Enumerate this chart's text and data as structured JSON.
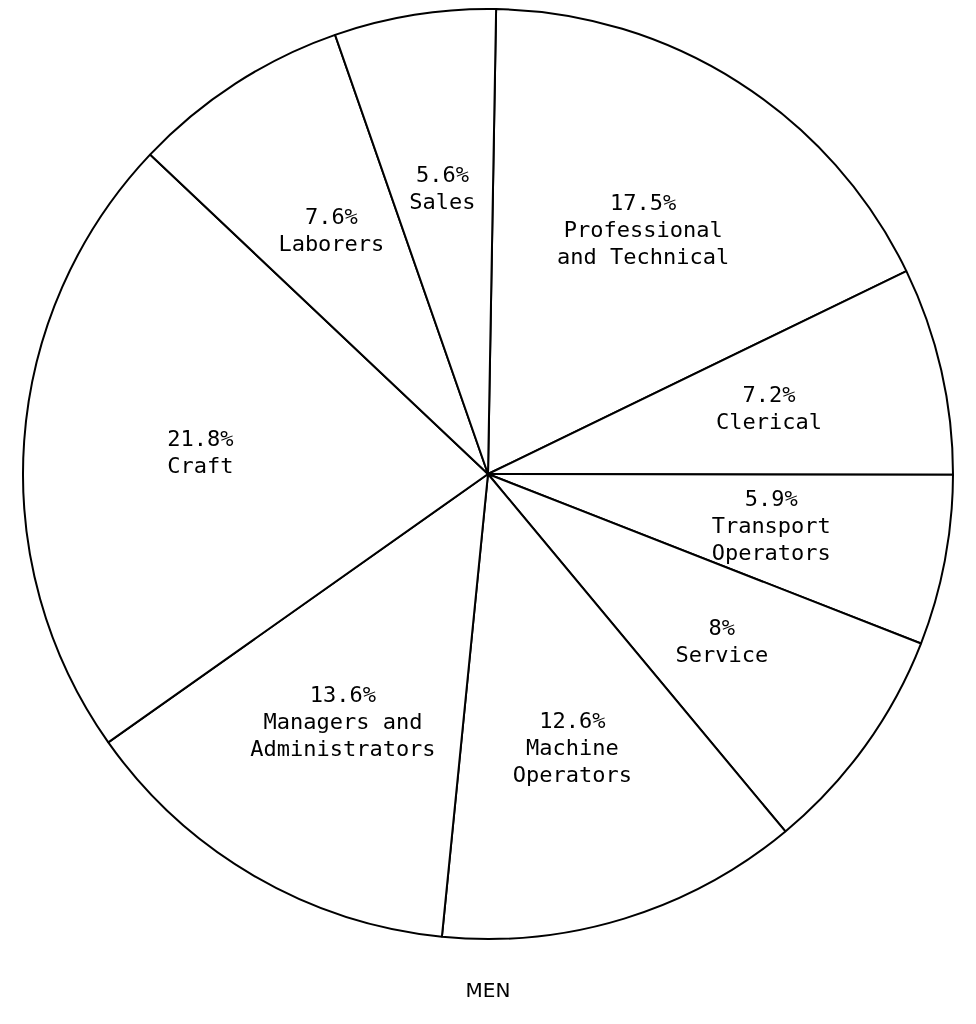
{
  "chart_data": {
    "type": "pie",
    "title": "MEN",
    "categories": [
      "Professional and Technical",
      "Clerical",
      "Transport Operators",
      "Service",
      "Machine Operators",
      "Managers and Administrators",
      "Craft",
      "Laborers",
      "Sales"
    ],
    "values": [
      17.5,
      7.2,
      5.9,
      8,
      12.6,
      13.6,
      21.8,
      7.6,
      5.6
    ],
    "value_labels": [
      "17.5%",
      "7.2%",
      "5.9%",
      "8%",
      "12.6%",
      "13.6%",
      "21.8%",
      "7.6%",
      "5.6%"
    ],
    "colors": [
      "#ffffff",
      "#ffffff",
      "#ffffff",
      "#ffffff",
      "#ffffff",
      "#ffffff",
      "#ffffff",
      "#ffffff",
      "#ffffff"
    ],
    "legend": false
  }
}
